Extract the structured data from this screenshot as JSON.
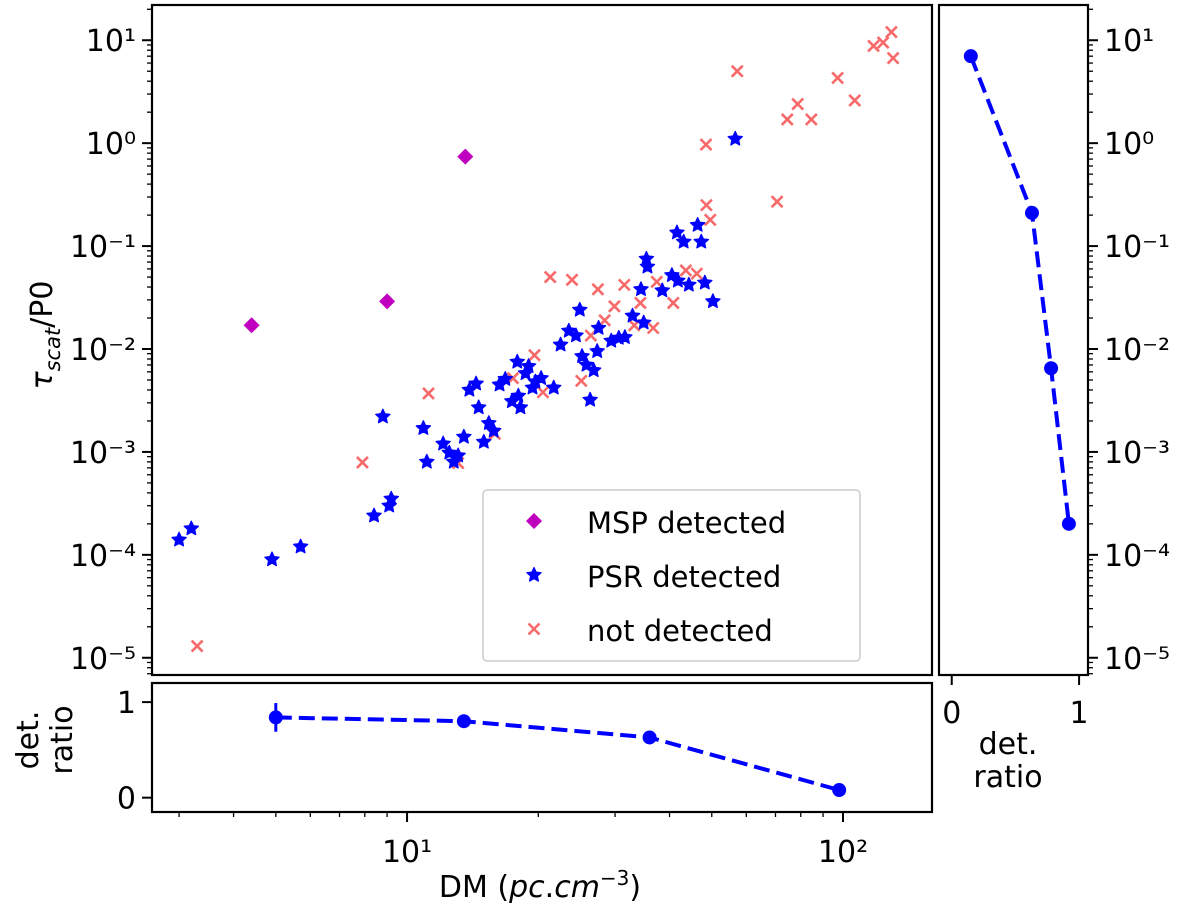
{
  "chart_data": [
    {
      "type": "scatter",
      "panel": "main",
      "xscale": "log",
      "yscale": "log",
      "xlim": [
        2.6,
        160
      ],
      "ylim": [
        6.8e-06,
        22
      ],
      "xlabel": "DM (pc.cm^-3)",
      "ylabel": "τ_scat/P0",
      "legend_position": "lower-right",
      "series": [
        {
          "name": "MSP detected",
          "marker": "diamond",
          "color": "#bf00bf",
          "points": [
            [
              4.4,
              0.017
            ],
            [
              9.0,
              0.029
            ],
            [
              13.6,
              0.74
            ]
          ]
        },
        {
          "name": "PSR detected",
          "marker": "star",
          "color": "#0000ff",
          "points": [
            [
              3.0,
              0.00014
            ],
            [
              3.2,
              0.00018
            ],
            [
              4.9,
              9e-05
            ],
            [
              5.7,
              0.00012
            ],
            [
              8.4,
              0.00024
            ],
            [
              8.8,
              0.0022
            ],
            [
              9.1,
              0.0003
            ],
            [
              9.2,
              0.00035
            ],
            [
              10.9,
              0.0017
            ],
            [
              11.1,
              0.0008
            ],
            [
              12.1,
              0.0012
            ],
            [
              12.5,
              0.00098
            ],
            [
              12.8,
              0.0008
            ],
            [
              13.1,
              0.00092
            ],
            [
              13.5,
              0.0014
            ],
            [
              13.9,
              0.004
            ],
            [
              14.4,
              0.0046
            ],
            [
              14.6,
              0.0027
            ],
            [
              15.0,
              0.00125
            ],
            [
              15.4,
              0.0019
            ],
            [
              15.8,
              0.0016
            ],
            [
              16.3,
              0.0045
            ],
            [
              16.8,
              0.0051
            ],
            [
              17.4,
              0.0031
            ],
            [
              17.9,
              0.0075
            ],
            [
              18.0,
              0.0035
            ],
            [
              18.2,
              0.0027
            ],
            [
              18.7,
              0.0058
            ],
            [
              19.0,
              0.0068
            ],
            [
              19.4,
              0.0042
            ],
            [
              19.7,
              0.0048
            ],
            [
              20.3,
              0.0052
            ],
            [
              21.7,
              0.0042
            ],
            [
              22.5,
              0.011
            ],
            [
              23.5,
              0.015
            ],
            [
              24.4,
              0.0135
            ],
            [
              24.9,
              0.024
            ],
            [
              25.2,
              0.0085
            ],
            [
              25.8,
              0.007
            ],
            [
              26.3,
              0.0032
            ],
            [
              26.8,
              0.0062
            ],
            [
              27.3,
              0.0095
            ],
            [
              27.5,
              0.016
            ],
            [
              29.4,
              0.012
            ],
            [
              30.6,
              0.0128
            ],
            [
              31.6,
              0.013
            ],
            [
              32.9,
              0.021
            ],
            [
              34.4,
              0.038
            ],
            [
              34.9,
              0.018
            ],
            [
              35.4,
              0.075
            ],
            [
              35.6,
              0.063
            ],
            [
              38.5,
              0.037
            ],
            [
              40.5,
              0.052
            ],
            [
              41.6,
              0.135
            ],
            [
              41.8,
              0.046
            ],
            [
              43.1,
              0.11
            ],
            [
              44.3,
              0.042
            ],
            [
              46.4,
              0.16
            ],
            [
              47.3,
              0.11
            ],
            [
              48.2,
              0.044
            ],
            [
              50.3,
              0.029
            ],
            [
              56.6,
              1.1
            ]
          ]
        },
        {
          "name": "not detected",
          "marker": "x",
          "color": "#f86a6a",
          "points": [
            [
              3.3,
              1.3e-05
            ],
            [
              7.9,
              0.00079
            ],
            [
              11.2,
              0.0037
            ],
            [
              13.1,
              0.00078
            ],
            [
              15.9,
              0.0015
            ],
            [
              17.5,
              0.0052
            ],
            [
              19.6,
              0.0087
            ],
            [
              20.5,
              0.0038
            ],
            [
              21.3,
              0.05
            ],
            [
              23.9,
              0.047
            ],
            [
              25.1,
              0.0049
            ],
            [
              26.4,
              0.0135
            ],
            [
              27.4,
              0.038
            ],
            [
              28.4,
              0.019
            ],
            [
              29.9,
              0.026
            ],
            [
              31.5,
              0.042
            ],
            [
              33.2,
              0.017
            ],
            [
              34.3,
              0.028
            ],
            [
              36.7,
              0.016
            ],
            [
              37.4,
              0.045
            ],
            [
              40.8,
              0.028
            ],
            [
              43.6,
              0.058
            ],
            [
              46.2,
              0.054
            ],
            [
              48.5,
              0.97
            ],
            [
              48.6,
              0.25
            ],
            [
              49.6,
              0.18
            ],
            [
              57.2,
              5.0
            ],
            [
              70.6,
              0.27
            ],
            [
              74.5,
              1.7
            ],
            [
              78.7,
              2.4
            ],
            [
              84.6,
              1.7
            ],
            [
              97.2,
              4.3
            ],
            [
              106.4,
              2.6
            ],
            [
              117.5,
              8.8
            ],
            [
              123.6,
              9.5
            ],
            [
              129.1,
              12.0
            ],
            [
              130.3,
              6.7
            ]
          ]
        }
      ]
    },
    {
      "type": "line",
      "panel": "bottom",
      "xscale": "log",
      "xlim": [
        2.6,
        160
      ],
      "ylim": [
        -0.15,
        1.2
      ],
      "xlabel": "DM (pc.cm^-3)",
      "ylabel": "det. ratio",
      "style": "dashed",
      "color": "#0000ff",
      "x": [
        5.0,
        13.5,
        36.0,
        98.0
      ],
      "values": [
        0.84,
        0.8,
        0.63,
        0.08
      ],
      "yerr": [
        0.15,
        0.02,
        0.02,
        0.05
      ]
    },
    {
      "type": "line",
      "panel": "right",
      "yscale": "log",
      "ylim": [
        6.8e-06,
        22
      ],
      "xlim": [
        -0.1,
        1.07
      ],
      "xlabel": "det. ratio",
      "style": "dashed",
      "color": "#0000ff",
      "y": [
        7.0,
        0.21,
        0.0065,
        0.0002
      ],
      "values": [
        0.15,
        0.63,
        0.78,
        0.92
      ],
      "xerr": [
        0.03,
        0.0,
        0.0,
        0.05
      ]
    }
  ],
  "axes": {
    "main": {
      "x_ticks": [
        {
          "value": 10,
          "label": "10¹"
        },
        {
          "value": 100,
          "label": "10²"
        }
      ],
      "y_ticks": [
        {
          "value": 10,
          "label": "10¹"
        },
        {
          "value": 1,
          "label": "10⁰"
        },
        {
          "value": 0.1,
          "label": "10⁻¹"
        },
        {
          "value": 0.01,
          "label": "10⁻²"
        },
        {
          "value": 0.001,
          "label": "10⁻³"
        },
        {
          "value": 0.0001,
          "label": "10⁻⁴"
        },
        {
          "value": 1e-05,
          "label": "10⁻⁵"
        }
      ]
    },
    "bottom": {
      "y_ticks": [
        {
          "value": 1,
          "label": "1"
        },
        {
          "value": 0,
          "label": "0"
        }
      ]
    },
    "right": {
      "x_ticks": [
        {
          "value": 0,
          "label": "0"
        },
        {
          "value": 1,
          "label": "1"
        }
      ]
    }
  },
  "labels": {
    "ylabel_main_tau": "τ",
    "ylabel_main_sub": "scat",
    "ylabel_main_rest": "/P0",
    "xlabel_prefix": "DM (",
    "xlabel_pc": "pc",
    "xlabel_dot": ".",
    "xlabel_cm": "cm",
    "xlabel_exp": "−3",
    "xlabel_suffix": ")",
    "bottom_ylabel_line1": "det.",
    "bottom_ylabel_line2": "ratio",
    "right_xlabel_line1": "det.",
    "right_xlabel_line2": "ratio"
  }
}
